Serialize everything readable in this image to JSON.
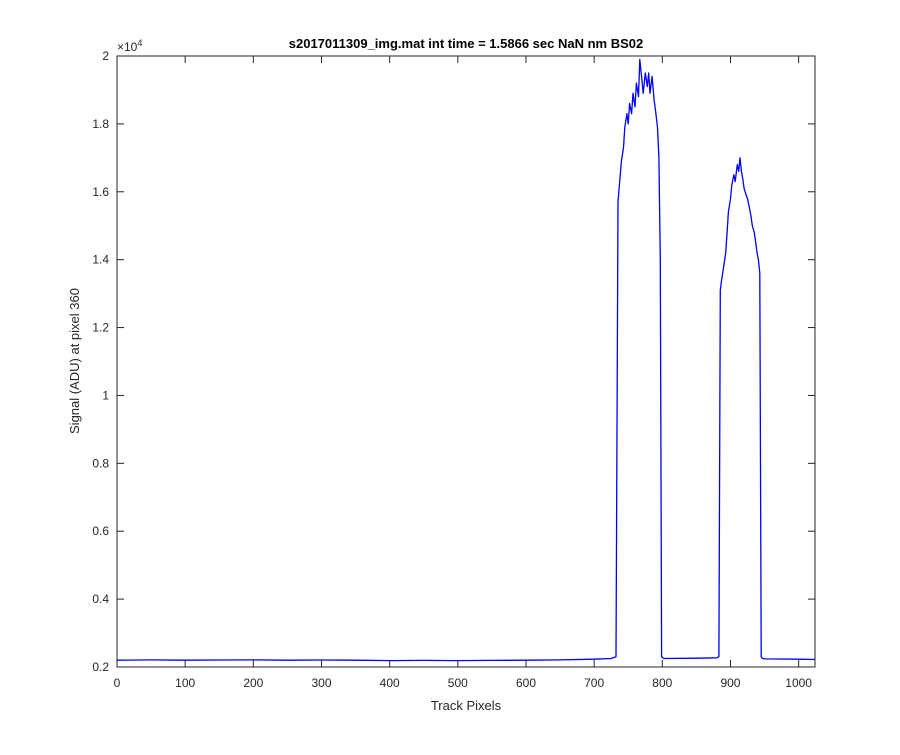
{
  "chart_data": {
    "type": "line",
    "title": "s2017011309_img.mat int time = 1.5866 sec  NaN nm BS02",
    "xlabel": "Track Pixels",
    "ylabel": "Signal (ADU) at pixel 360",
    "y_exponent_label": "×10",
    "y_exponent_power": "4",
    "xlim": [
      0,
      1024
    ],
    "ylim": [
      2000,
      20000
    ],
    "x_ticks": [
      0,
      100,
      200,
      300,
      400,
      500,
      600,
      700,
      800,
      900,
      1000
    ],
    "x_tick_labels": [
      "0",
      "100",
      "200",
      "300",
      "400",
      "500",
      "600",
      "700",
      "800",
      "900",
      "1000"
    ],
    "y_ticks": [
      2000,
      4000,
      6000,
      8000,
      10000,
      12000,
      14000,
      16000,
      18000,
      20000
    ],
    "y_tick_labels": [
      "0.2",
      "0.4",
      "0.6",
      "0.8",
      "1",
      "1.2",
      "1.4",
      "1.6",
      "1.8",
      "2"
    ],
    "grid": false,
    "line_color": "#0000ff",
    "series": [
      {
        "x": [
          0,
          50,
          100,
          150,
          200,
          250,
          300,
          350,
          400,
          450,
          500,
          550,
          600,
          650,
          700,
          725,
          732,
          735,
          737,
          740,
          743,
          745,
          748,
          750,
          752,
          755,
          757,
          760,
          762,
          765,
          767,
          770,
          772,
          775,
          778,
          780,
          782,
          785,
          788,
          790,
          793,
          795,
          797,
          799,
          802,
          850,
          880,
          883,
          885,
          887,
          890,
          893,
          895,
          897,
          900,
          902,
          905,
          907,
          910,
          912,
          914,
          916,
          918,
          920,
          923,
          925,
          927,
          930,
          932,
          935,
          937,
          939,
          941,
          943,
          945,
          947,
          950,
          1000,
          1024
        ],
        "y": [
          2200,
          2210,
          2200,
          2205,
          2210,
          2200,
          2205,
          2200,
          2190,
          2195,
          2190,
          2195,
          2200,
          2210,
          2230,
          2250,
          2300,
          15700,
          16200,
          16900,
          17300,
          17900,
          18300,
          18000,
          18600,
          18300,
          18900,
          18500,
          19200,
          18800,
          19900,
          19300,
          18900,
          19500,
          19100,
          19500,
          18900,
          19400,
          18700,
          18400,
          17900,
          17000,
          14000,
          2300,
          2250,
          2260,
          2270,
          2300,
          13100,
          13400,
          13800,
          14200,
          14800,
          15400,
          15800,
          16200,
          16500,
          16300,
          16800,
          16600,
          17000,
          16600,
          16400,
          16100,
          15900,
          15800,
          15600,
          15300,
          15000,
          14800,
          14500,
          14200,
          14000,
          13600,
          2300,
          2250,
          2240,
          2230,
          2220
        ]
      }
    ]
  }
}
